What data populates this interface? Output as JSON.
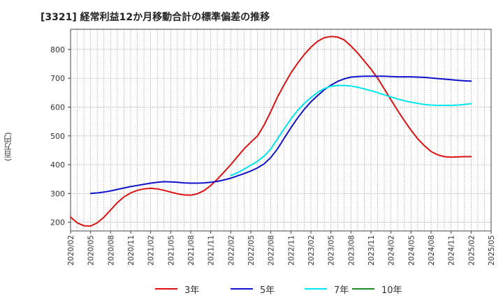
{
  "chart_data": {
    "type": "line",
    "title": "[3321]  経常利益12か月移動合計の標準偏差の推移",
    "xlabel": "",
    "ylabel": "(百万円)",
    "x_ticks": [
      "2020/02",
      "2020/05",
      "2020/08",
      "2020/11",
      "2021/02",
      "2021/05",
      "2021/08",
      "2021/11",
      "2022/02",
      "2022/05",
      "2022/08",
      "2022/11",
      "2023/02",
      "2023/05",
      "2023/08",
      "2023/11",
      "2024/02",
      "2024/05",
      "2024/08",
      "2024/11",
      "2025/02",
      "2025/05"
    ],
    "y_ticks": [
      200,
      300,
      400,
      500,
      600,
      700,
      800
    ],
    "ylim": [
      170,
      870
    ],
    "grid": true,
    "legend_position": "bottom",
    "series": [
      {
        "name": "3年",
        "color": "#dd1111",
        "x": [
          "2020/02",
          "2020/03",
          "2020/04",
          "2020/05",
          "2020/06",
          "2020/07",
          "2020/08",
          "2020/09",
          "2020/10",
          "2020/11",
          "2020/12",
          "2021/01",
          "2021/02",
          "2021/03",
          "2021/04",
          "2021/05",
          "2021/06",
          "2021/07",
          "2021/08",
          "2021/09",
          "2021/10",
          "2021/11",
          "2021/12",
          "2022/01",
          "2022/02",
          "2022/03",
          "2022/04",
          "2022/05",
          "2022/06",
          "2022/07",
          "2022/08",
          "2022/09",
          "2022/10",
          "2022/11",
          "2022/12",
          "2023/01",
          "2023/02",
          "2023/03",
          "2023/04",
          "2023/05",
          "2023/06",
          "2023/07",
          "2023/08",
          "2023/09",
          "2023/10",
          "2023/11",
          "2023/12",
          "2024/01",
          "2024/02",
          "2024/03",
          "2024/04",
          "2024/05",
          "2024/06",
          "2024/07",
          "2024/08",
          "2024/09",
          "2024/10",
          "2024/11",
          "2024/12",
          "2025/01",
          "2025/02"
        ],
        "values": [
          218,
          198,
          188,
          187,
          198,
          218,
          243,
          268,
          288,
          302,
          311,
          316,
          318,
          316,
          311,
          305,
          299,
          295,
          294,
          299,
          310,
          328,
          350,
          375,
          400,
          428,
          455,
          478,
          500,
          538,
          585,
          635,
          678,
          718,
          752,
          782,
          808,
          828,
          841,
          845,
          843,
          833,
          812,
          788,
          760,
          732,
          700,
          663,
          625,
          588,
          553,
          520,
          490,
          466,
          446,
          434,
          428,
          426,
          427,
          428,
          428
        ]
      },
      {
        "name": "5年",
        "color": "#1111cc",
        "x": [
          "2020/05",
          "2020/06",
          "2020/07",
          "2020/08",
          "2020/09",
          "2020/10",
          "2020/11",
          "2020/12",
          "2021/01",
          "2021/02",
          "2021/03",
          "2021/04",
          "2021/05",
          "2021/06",
          "2021/07",
          "2021/08",
          "2021/09",
          "2021/10",
          "2021/11",
          "2021/12",
          "2022/01",
          "2022/02",
          "2022/03",
          "2022/04",
          "2022/05",
          "2022/06",
          "2022/07",
          "2022/08",
          "2022/09",
          "2022/10",
          "2022/11",
          "2022/12",
          "2023/01",
          "2023/02",
          "2023/03",
          "2023/04",
          "2023/05",
          "2023/06",
          "2023/07",
          "2023/08",
          "2023/09",
          "2023/10",
          "2023/11",
          "2023/12",
          "2024/01",
          "2024/02",
          "2024/03",
          "2024/04",
          "2024/05",
          "2024/06",
          "2024/07",
          "2024/08",
          "2024/09",
          "2024/10",
          "2024/11",
          "2024/12",
          "2025/01",
          "2025/02"
        ],
        "values": [
          300,
          302,
          305,
          309,
          314,
          319,
          324,
          328,
          332,
          336,
          339,
          341,
          340,
          339,
          337,
          336,
          336,
          337,
          339,
          342,
          347,
          353,
          361,
          369,
          378,
          389,
          403,
          425,
          455,
          492,
          528,
          562,
          592,
          618,
          640,
          660,
          676,
          689,
          698,
          704,
          706,
          707,
          707,
          707,
          707,
          706,
          705,
          705,
          705,
          704,
          703,
          701,
          699,
          697,
          695,
          693,
          691,
          690
        ]
      },
      {
        "name": "7年",
        "color": "#00e5ee",
        "x": [
          "2022/02",
          "2022/03",
          "2022/04",
          "2022/05",
          "2022/06",
          "2022/07",
          "2022/08",
          "2022/09",
          "2022/10",
          "2022/11",
          "2022/12",
          "2023/01",
          "2023/02",
          "2023/03",
          "2023/04",
          "2023/05",
          "2023/06",
          "2023/07",
          "2023/08",
          "2023/09",
          "2023/10",
          "2023/11",
          "2023/12",
          "2024/01",
          "2024/02",
          "2024/03",
          "2024/04",
          "2024/05",
          "2024/06",
          "2024/07",
          "2024/08",
          "2024/09",
          "2024/10",
          "2024/11",
          "2024/12",
          "2025/01",
          "2025/02"
        ],
        "values": [
          362,
          372,
          385,
          398,
          412,
          430,
          455,
          490,
          525,
          558,
          588,
          612,
          633,
          651,
          664,
          672,
          675,
          675,
          673,
          669,
          663,
          657,
          650,
          642,
          635,
          628,
          622,
          617,
          613,
          609,
          607,
          606,
          606,
          606,
          607,
          609,
          612
        ]
      },
      {
        "name": "10年",
        "color": "#228822",
        "x": [],
        "values": []
      }
    ]
  }
}
